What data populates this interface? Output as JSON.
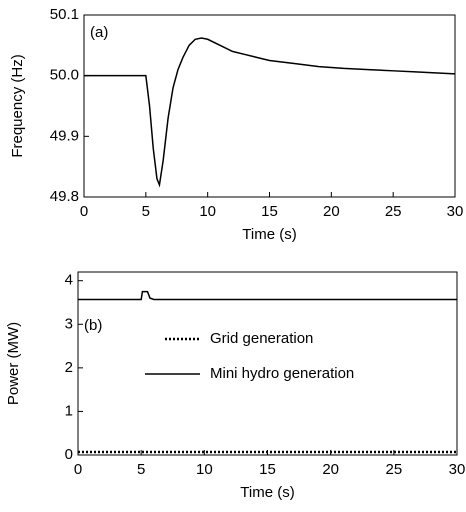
{
  "chart_data": [
    {
      "type": "line",
      "annotation": "(a)",
      "xlabel": "Time (s)",
      "ylabel": "Frequency (Hz)",
      "x": [
        0,
        4.9,
        5,
        5.3,
        5.6,
        5.9,
        6.1,
        6.4,
        6.8,
        7.2,
        7.6,
        8,
        8.5,
        9,
        9.5,
        10,
        11,
        12,
        13,
        14,
        15,
        17,
        19,
        21,
        23,
        25,
        27,
        29,
        30
      ],
      "values": [
        50,
        50,
        50,
        49.95,
        49.88,
        49.83,
        49.82,
        49.86,
        49.93,
        49.98,
        50.01,
        50.03,
        50.05,
        50.06,
        50.062,
        50.06,
        50.05,
        50.04,
        50.035,
        50.03,
        50.025,
        50.02,
        50.015,
        50.012,
        50.01,
        50.008,
        50.006,
        50.004,
        50.003
      ],
      "color": "#000000",
      "xlim": [
        0,
        30
      ],
      "xticks": [
        0,
        5,
        10,
        15,
        20,
        25,
        30
      ],
      "ylim": [
        49.8,
        50.1
      ],
      "yticks": [
        49.8,
        49.9,
        {
          "value": 50,
          "label": "50.0"
        },
        50.1
      ]
    },
    {
      "type": "line",
      "annotation": "(b)",
      "xlabel": "Time (s)",
      "ylabel": "Power (MW)",
      "x": [
        0,
        5,
        5.1,
        5.5,
        5.7,
        6,
        7.5,
        30
      ],
      "series": [
        {
          "name": "Grid generation",
          "color": "#000000",
          "dash": "dotted",
          "values": [
            0.07,
            0.07,
            0.07,
            0.07,
            0.07,
            0.07,
            0.07,
            0.07
          ]
        },
        {
          "name": "Mini hydro generation",
          "color": "#000000",
          "dash": "solid",
          "values": [
            3.57,
            3.57,
            3.75,
            3.75,
            3.6,
            3.57,
            3.57,
            3.57
          ]
        }
      ],
      "legend": "center",
      "xlim": [
        0,
        30
      ],
      "xticks": [
        0,
        5,
        10,
        15,
        20,
        25,
        30
      ],
      "ylim": [
        0,
        4.2
      ],
      "yticks": [
        0,
        1,
        2,
        3,
        4
      ]
    }
  ]
}
